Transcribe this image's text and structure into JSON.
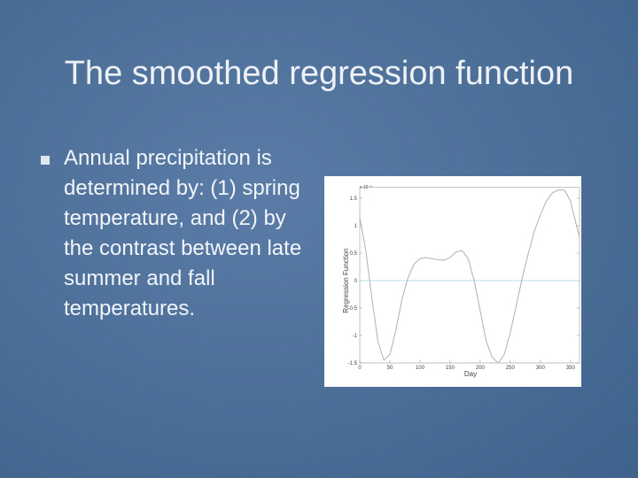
{
  "slide": {
    "title": "The smoothed regression function",
    "bullets": [
      "Annual precipitation is determined by: (1) spring temperature, and (2) by the contrast between late summer and fall temperatures."
    ]
  },
  "chart_data": {
    "type": "line",
    "xlabel": "Day",
    "ylabel": "Regression Function",
    "annotation": "x 10⁻³",
    "x": [
      0,
      10,
      20,
      30,
      40,
      50,
      60,
      70,
      80,
      90,
      100,
      110,
      120,
      130,
      140,
      150,
      160,
      170,
      180,
      190,
      200,
      210,
      220,
      230,
      240,
      250,
      260,
      270,
      280,
      290,
      300,
      310,
      320,
      330,
      340,
      350,
      360,
      365
    ],
    "values": [
      1.16,
      0.55,
      -0.3,
      -1.1,
      -1.45,
      -1.35,
      -0.9,
      -0.35,
      0.05,
      0.3,
      0.4,
      0.42,
      0.4,
      0.38,
      0.37,
      0.42,
      0.52,
      0.55,
      0.4,
      0.0,
      -0.55,
      -1.1,
      -1.4,
      -1.5,
      -1.35,
      -0.95,
      -0.45,
      0.05,
      0.5,
      0.9,
      1.2,
      1.45,
      1.6,
      1.65,
      1.65,
      1.45,
      1.0,
      0.8
    ],
    "color": "#b0b0b0",
    "xlim": [
      0,
      365
    ],
    "xticks": [
      0,
      50,
      100,
      150,
      200,
      250,
      300,
      350
    ],
    "ylim": [
      -1.5,
      1.7
    ],
    "yticks": [
      -1.5,
      -1,
      -0.5,
      0,
      0.5,
      1,
      1.5
    ]
  }
}
